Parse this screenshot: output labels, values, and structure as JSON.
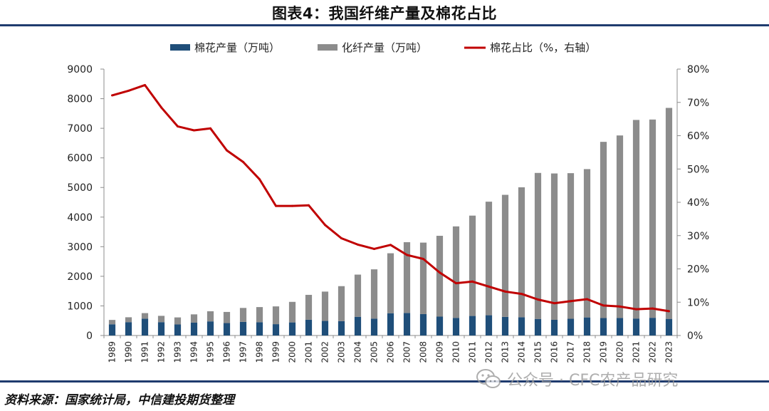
{
  "title": "图表4：我国纤维产量及棉花占比",
  "source": "资料来源：国家统计局，中信建投期货整理",
  "watermark": {
    "icon": "wechat-icon",
    "text": "公众号 · CFC农产品研究"
  },
  "colors": {
    "cotton": "#1f4e79",
    "fiber": "#8c8c8c",
    "share": "#c00000",
    "rule": "#1f3b6e"
  },
  "chart_data": {
    "type": "bar",
    "stacked": true,
    "categories": [
      "1989",
      "1990",
      "1991",
      "1992",
      "1993",
      "1994",
      "1995",
      "1996",
      "1997",
      "1998",
      "1999",
      "2000",
      "2001",
      "2002",
      "2003",
      "2004",
      "2005",
      "2006",
      "2007",
      "2008",
      "2009",
      "2010",
      "2011",
      "2012",
      "2013",
      "2014",
      "2015",
      "2016",
      "2017",
      "2018",
      "2019",
      "2020",
      "2021",
      "2022",
      "2023"
    ],
    "series": [
      {
        "name": "棉花产量（万吨）",
        "type": "bar",
        "axis": "left",
        "color": "#1f4e79",
        "values": [
          379,
          451,
          568,
          451,
          374,
          434,
          477,
          420,
          460,
          450,
          383,
          442,
          532,
          492,
          486,
          632,
          571,
          753,
          762,
          723,
          638,
          596,
          660,
          684,
          630,
          618,
          560,
          530,
          565,
          610,
          589,
          591,
          573,
          598,
          562
        ]
      },
      {
        "name": "化纤产量（万吨）",
        "type": "bar",
        "axis": "left",
        "color": "#8c8c8c",
        "values": [
          147,
          165,
          188,
          213,
          237,
          280,
          341,
          376,
          471,
          510,
          600,
          694,
          841,
          991,
          1181,
          1425,
          1664,
          2025,
          2390,
          2415,
          2730,
          3090,
          3390,
          3837,
          4122,
          4389,
          4932,
          4944,
          4919,
          5011,
          5953,
          6167,
          6709,
          6698,
          7127
        ]
      },
      {
        "name": "棉花占比（%，右轴）",
        "type": "line",
        "axis": "right",
        "color": "#c00000",
        "values": [
          72.1,
          73.5,
          75.2,
          68.5,
          62.8,
          61.6,
          62.2,
          55.6,
          52.1,
          46.9,
          38.9,
          38.9,
          39.1,
          33.2,
          29.2,
          27.3,
          26.0,
          27.2,
          24.2,
          23.0,
          18.9,
          15.7,
          16.2,
          14.7,
          13.2,
          12.5,
          10.8,
          9.7,
          10.3,
          10.9,
          9.0,
          8.7,
          7.9,
          8.1,
          7.3
        ]
      }
    ],
    "y_left": {
      "ylim": [
        0,
        9000
      ],
      "ticks": [
        "0",
        "1000",
        "2000",
        "3000",
        "4000",
        "5000",
        "6000",
        "7000",
        "8000",
        "9000"
      ]
    },
    "y_right": {
      "ylim": [
        0,
        80
      ],
      "ticks": [
        "0%",
        "10%",
        "20%",
        "30%",
        "40%",
        "50%",
        "60%",
        "70%",
        "80%"
      ]
    },
    "grid": false,
    "legend": "top-center",
    "xlabel": "",
    "ylabel": ""
  }
}
